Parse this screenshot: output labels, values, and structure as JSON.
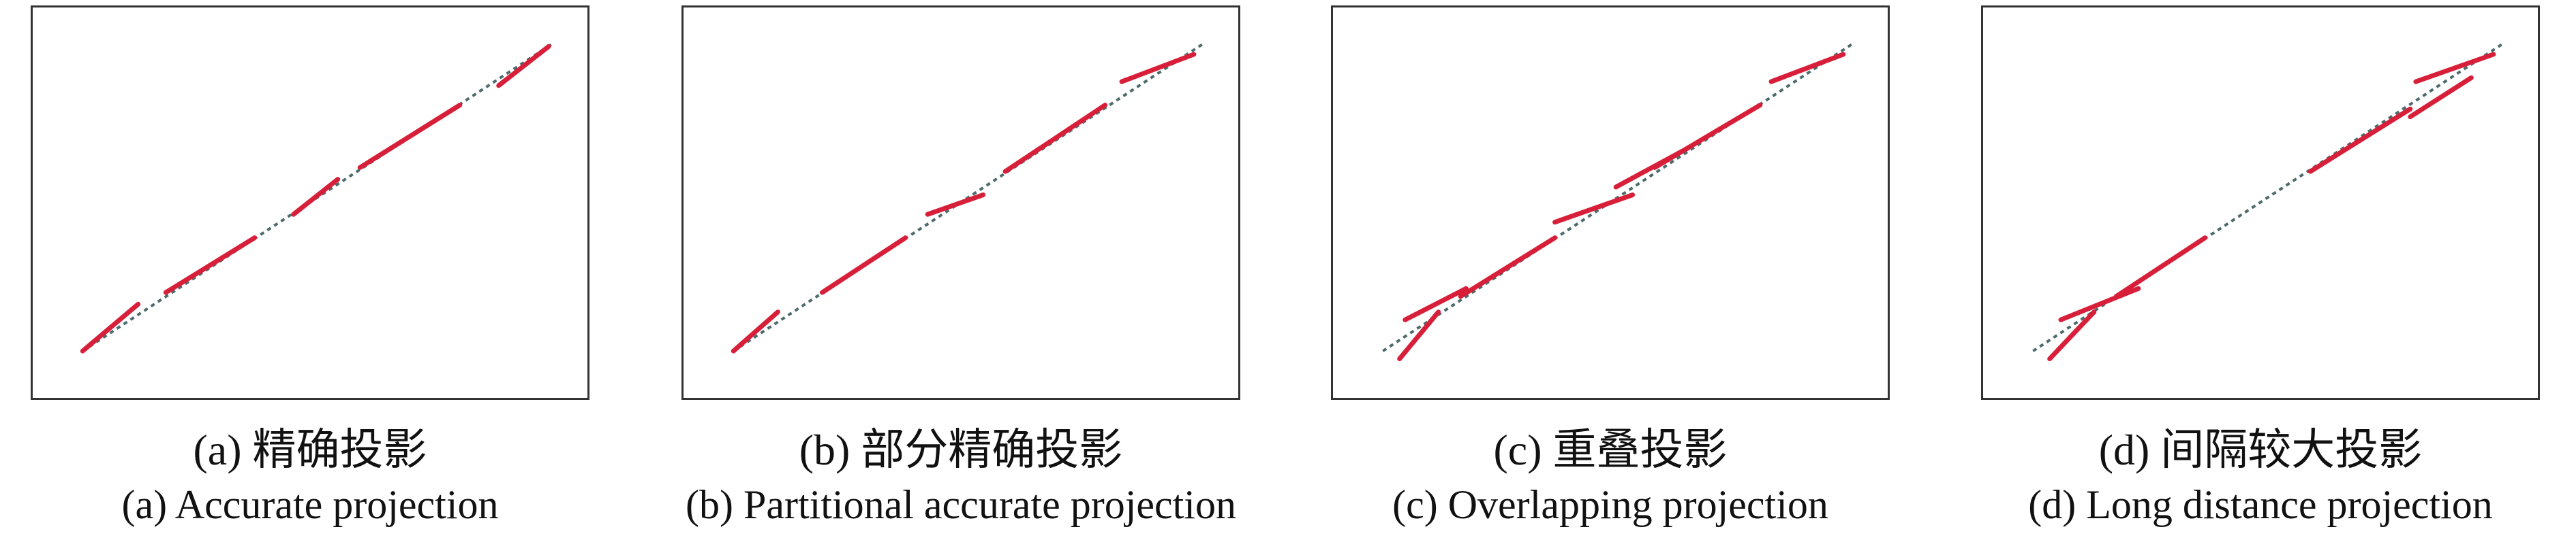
{
  "colors": {
    "segment": "#d81f3a",
    "reference_line": "#4d6b6b",
    "frame": "#333333"
  },
  "panels": [
    {
      "id": "a",
      "caption_cn": "(a) 精确投影",
      "caption_en": "(a) Accurate projection",
      "segments": [
        [
          [
            0.09,
            0.88
          ],
          [
            0.19,
            0.76
          ]
        ],
        [
          [
            0.24,
            0.73
          ],
          [
            0.4,
            0.59
          ]
        ],
        [
          [
            0.47,
            0.53
          ],
          [
            0.55,
            0.44
          ]
        ],
        [
          [
            0.59,
            0.41
          ],
          [
            0.77,
            0.25
          ]
        ],
        [
          [
            0.84,
            0.2
          ],
          [
            0.93,
            0.1
          ]
        ]
      ]
    },
    {
      "id": "b",
      "caption_cn": "(b) 部分精确投影",
      "caption_en": "(b) Partitional accurate projection",
      "segments": [
        [
          [
            0.09,
            0.88
          ],
          [
            0.17,
            0.78
          ]
        ],
        [
          [
            0.25,
            0.73
          ],
          [
            0.4,
            0.59
          ]
        ],
        [
          [
            0.44,
            0.53
          ],
          [
            0.54,
            0.48
          ]
        ],
        [
          [
            0.58,
            0.42
          ],
          [
            0.76,
            0.25
          ]
        ],
        [
          [
            0.79,
            0.19
          ],
          [
            0.92,
            0.12
          ]
        ]
      ]
    },
    {
      "id": "c",
      "caption_cn": "(c) 重叠投影",
      "caption_en": "(c) Overlapping projection",
      "segments": [
        [
          [
            0.13,
            0.8
          ],
          [
            0.24,
            0.72
          ]
        ],
        [
          [
            0.12,
            0.9
          ],
          [
            0.19,
            0.78
          ]
        ],
        [
          [
            0.23,
            0.74
          ],
          [
            0.4,
            0.59
          ]
        ],
        [
          [
            0.4,
            0.55
          ],
          [
            0.54,
            0.48
          ]
        ],
        [
          [
            0.51,
            0.46
          ],
          [
            0.64,
            0.36
          ]
        ],
        [
          [
            0.58,
            0.41
          ],
          [
            0.77,
            0.25
          ]
        ],
        [
          [
            0.79,
            0.19
          ],
          [
            0.92,
            0.12
          ]
        ]
      ]
    },
    {
      "id": "d",
      "caption_cn": "(d) 间隔较大投影",
      "caption_en": "(d) Long distance projection",
      "segments": [
        [
          [
            0.14,
            0.8
          ],
          [
            0.28,
            0.72
          ]
        ],
        [
          [
            0.12,
            0.9
          ],
          [
            0.2,
            0.78
          ]
        ],
        [
          [
            0.24,
            0.74
          ],
          [
            0.4,
            0.59
          ]
        ],
        [
          [
            0.59,
            0.42
          ],
          [
            0.77,
            0.26
          ]
        ],
        [
          [
            0.78,
            0.19
          ],
          [
            0.92,
            0.12
          ]
        ],
        [
          [
            0.77,
            0.28
          ],
          [
            0.88,
            0.18
          ]
        ]
      ]
    }
  ]
}
